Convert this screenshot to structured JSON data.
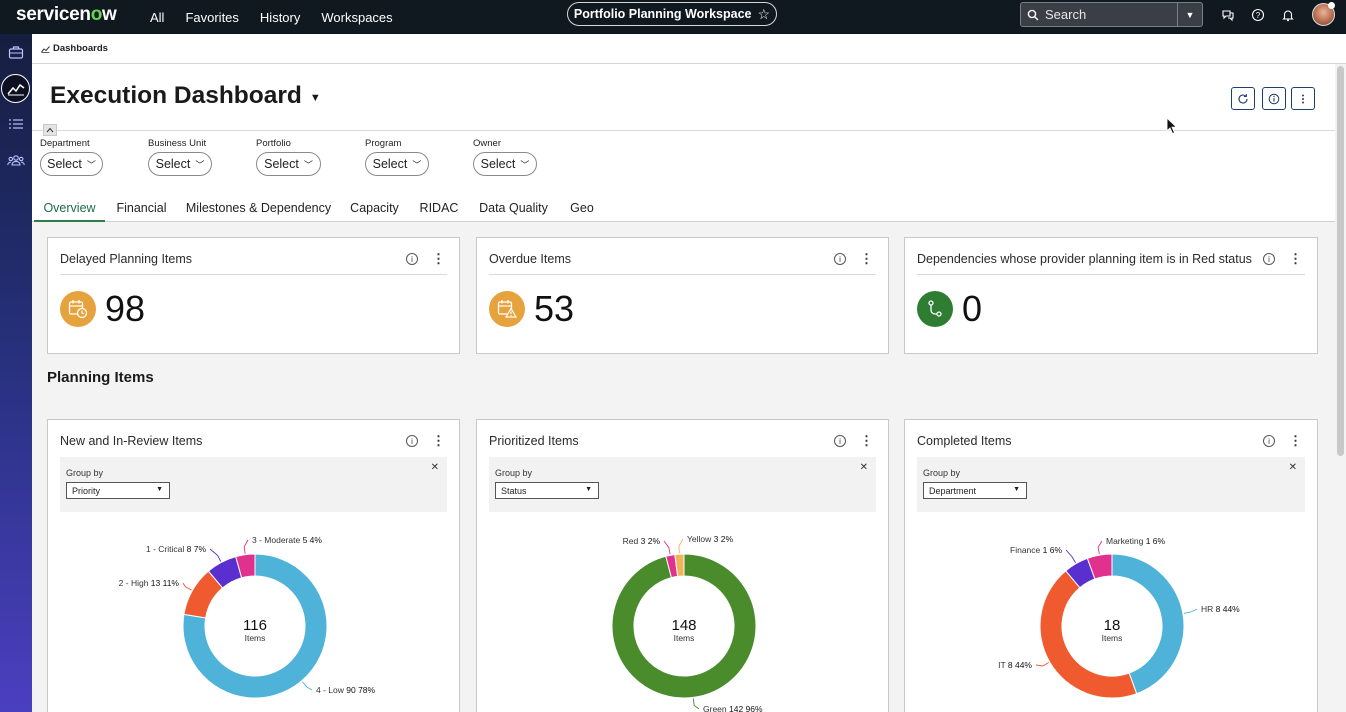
{
  "brand": {
    "logo_text_pre": "servicen",
    "logo_text_o": "o",
    "logo_text_post": "w"
  },
  "nav": {
    "links": [
      "All",
      "Favorites",
      "History",
      "Workspaces"
    ]
  },
  "workspace": {
    "name": "Portfolio Planning Workspace",
    "star_icon": "star-icon"
  },
  "search": {
    "placeholder": "Search"
  },
  "breadcrumb": {
    "label": "Dashboards"
  },
  "page": {
    "title": "Execution Dashboard"
  },
  "filters": [
    {
      "label": "Department",
      "value": "Select"
    },
    {
      "label": "Business Unit",
      "value": "Select"
    },
    {
      "label": "Portfolio",
      "value": "Select"
    },
    {
      "label": "Program",
      "value": "Select"
    },
    {
      "label": "Owner",
      "value": "Select"
    }
  ],
  "tabs": [
    "Overview",
    "Financial",
    "Milestones & Dependency",
    "Capacity",
    "RIDAC",
    "Data Quality",
    "Geo"
  ],
  "active_tab": "Overview",
  "kpis": [
    {
      "title": "Delayed Planning Items",
      "value": "98",
      "icon": "calendar-clock-icon",
      "color": "#e6a23c"
    },
    {
      "title": "Overdue Items",
      "value": "53",
      "icon": "calendar-warning-icon",
      "color": "#e6a23c"
    },
    {
      "title": "Dependencies whose provider planning item is in Red status",
      "value": "0",
      "icon": "dependency-icon",
      "color": "#2e7d32"
    }
  ],
  "section_title": "Planning Items",
  "donut_cards": [
    {
      "title": "New and In-Review Items",
      "group_by_label": "Group by",
      "group_by_value": "Priority",
      "center_value": "116",
      "center_label": "Items",
      "slices": [
        {
          "name": "4 - Low",
          "count": "90",
          "pct": "78%",
          "color": "#4fb3d9"
        },
        {
          "name": "2 - High",
          "count": "13",
          "pct": "11%",
          "color": "#ef5a2f"
        },
        {
          "name": "1 - Critical",
          "count": "8",
          "pct": "7%",
          "color": "#5a2fd0"
        },
        {
          "name": "3 - Moderate",
          "count": "5",
          "pct": "4%",
          "color": "#e0318e"
        }
      ]
    },
    {
      "title": "Prioritized Items",
      "group_by_label": "Group by",
      "group_by_value": "Status",
      "center_value": "148",
      "center_label": "Items",
      "slices": [
        {
          "name": "Green",
          "count": "142",
          "pct": "96%",
          "color": "#4a8b2c"
        },
        {
          "name": "Red",
          "count": "3",
          "pct": "2%",
          "color": "#e0318e"
        },
        {
          "name": "Yellow",
          "count": "3",
          "pct": "2%",
          "color": "#f2b35a"
        }
      ]
    },
    {
      "title": "Completed Items",
      "group_by_label": "Group by",
      "group_by_value": "Department",
      "center_value": "18",
      "center_label": "Items",
      "slices": [
        {
          "name": "HR",
          "count": "8",
          "pct": "44%",
          "color": "#4fb3d9"
        },
        {
          "name": "IT",
          "count": "8",
          "pct": "44%",
          "color": "#ef5a2f"
        },
        {
          "name": "Finance",
          "count": "1",
          "pct": "6%",
          "color": "#5a2fd0"
        },
        {
          "name": "Marketing",
          "count": "1",
          "pct": "6%",
          "color": "#e0318e"
        }
      ]
    }
  ]
}
